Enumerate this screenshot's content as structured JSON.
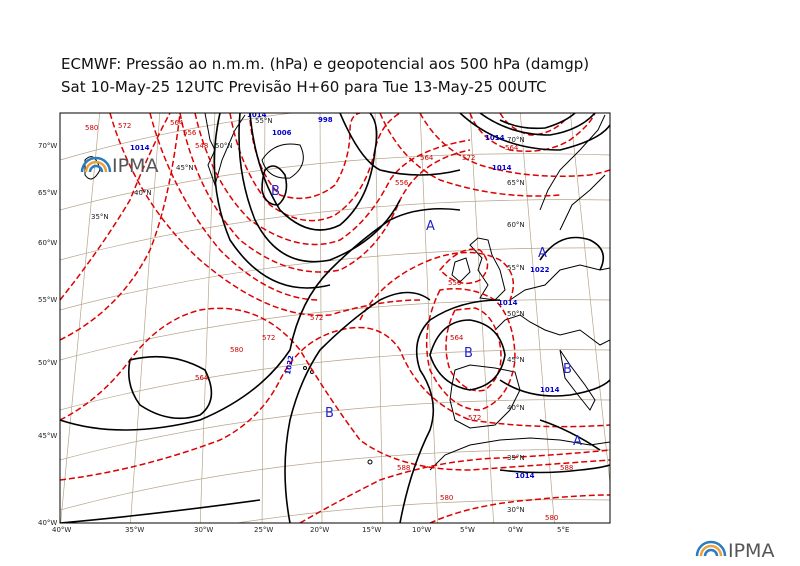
{
  "title_line1": "ECMWF:  Pressão ao n.m.m. (hPa) e geopotencial aos 500 hPa (damgp)",
  "title_line2": "Sat 10-May-25 12UTC Previsão H+60 para Tue 13-May-25 00UTC",
  "logo_text": "IPMA",
  "colors": {
    "isobar": "#000000",
    "geopotential": "#dd0000",
    "grid": "#9c8a6a",
    "pressure_label": "#0000cc"
  },
  "lon_ticks": [
    "40°W",
    "35°W",
    "30°W",
    "25°W",
    "20°W",
    "15°W",
    "10°W",
    "5°W",
    "0°W",
    "5°E"
  ],
  "lat_ticks": [
    "70°W",
    "65°W",
    "60°W",
    "55°W",
    "50°W",
    "45°W",
    "40°W"
  ],
  "inner_lat_labels": [
    "55°N",
    "50°N",
    "45°N",
    "40°N",
    "35°N",
    "70°N",
    "65°N",
    "60°N",
    "55°N",
    "50°N",
    "45°N",
    "40°N",
    "35°N",
    "30°N"
  ],
  "pressure_centers": [
    {
      "type": "high",
      "label": "A"
    },
    {
      "type": "high",
      "label": "A"
    },
    {
      "type": "high",
      "label": "A"
    },
    {
      "type": "low",
      "label": "B"
    },
    {
      "type": "low",
      "label": "B"
    },
    {
      "type": "low",
      "label": "B"
    },
    {
      "type": "low",
      "label": "B"
    }
  ],
  "isobar_labels": [
    "1022",
    "1014",
    "1014",
    "1022",
    "1014",
    "1014",
    "1014",
    "998",
    "1006",
    "1014",
    "1014"
  ],
  "geopotential_labels": [
    "580",
    "572",
    "564",
    "556",
    "548",
    "564",
    "572",
    "580",
    "588",
    "572",
    "580",
    "572",
    "564",
    "556",
    "564",
    "572",
    "556",
    "564",
    "580",
    "588"
  ]
}
